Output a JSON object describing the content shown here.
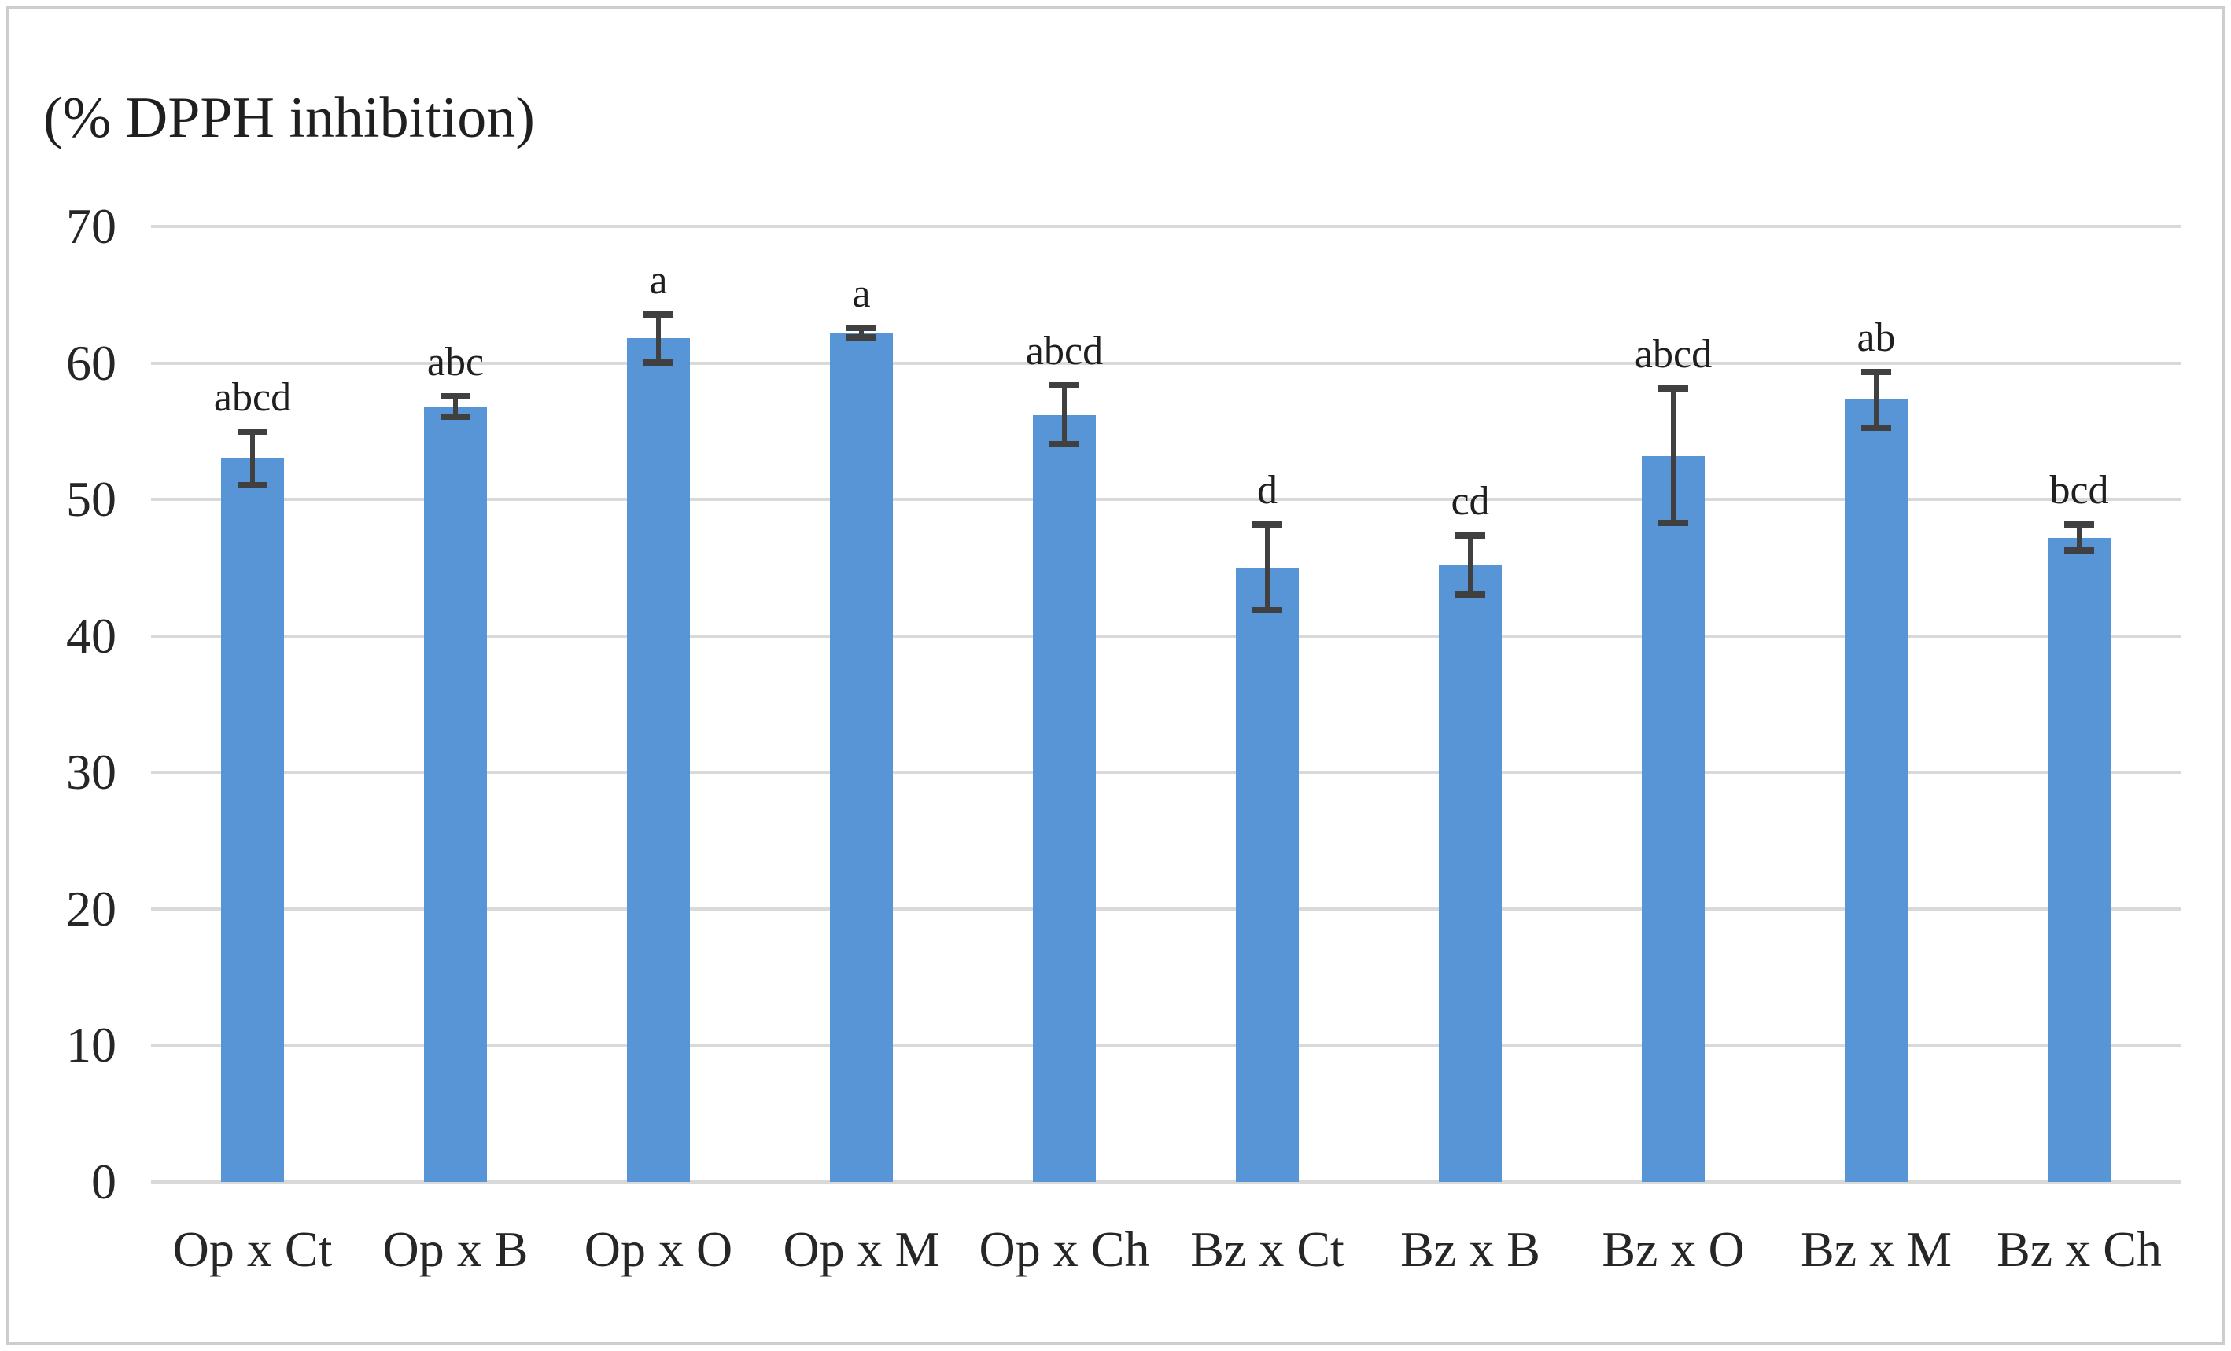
{
  "figure": {
    "title": "(% DPPH inhibition)"
  },
  "chart_data": {
    "type": "bar",
    "title": "(% DPPH inhibition)",
    "categories": [
      "Op x Ct",
      "Op x B",
      "Op x O",
      "Op x M",
      "Op x Ch",
      "Bz x Ct",
      "Bz x B",
      "Bz x O",
      "Bz x M",
      "Bz x Ch"
    ],
    "values": [
      53.0,
      56.8,
      61.8,
      62.2,
      56.2,
      45.0,
      45.2,
      53.2,
      57.3,
      47.2
    ],
    "error_bars": [
      2.0,
      0.8,
      1.8,
      0.4,
      2.2,
      3.2,
      2.2,
      5.0,
      2.1,
      1.0
    ],
    "sig_letters": [
      "abcd",
      "abc",
      "a",
      "a",
      "abcd",
      "d",
      "cd",
      "abcd",
      "ab",
      "bcd"
    ],
    "y_ticks": [
      70,
      60,
      50,
      40,
      30,
      20,
      10,
      0
    ],
    "ylim": [
      0,
      70
    ],
    "xlabel": "",
    "ylabel": "(% DPPH inhibition)",
    "grid": "horizontal gridlines on",
    "legend": "none",
    "bar_color": "#5795d6",
    "error_color": "#404040",
    "gridline_color": "#d9d9d9",
    "text_color": "#1f1f1f"
  }
}
